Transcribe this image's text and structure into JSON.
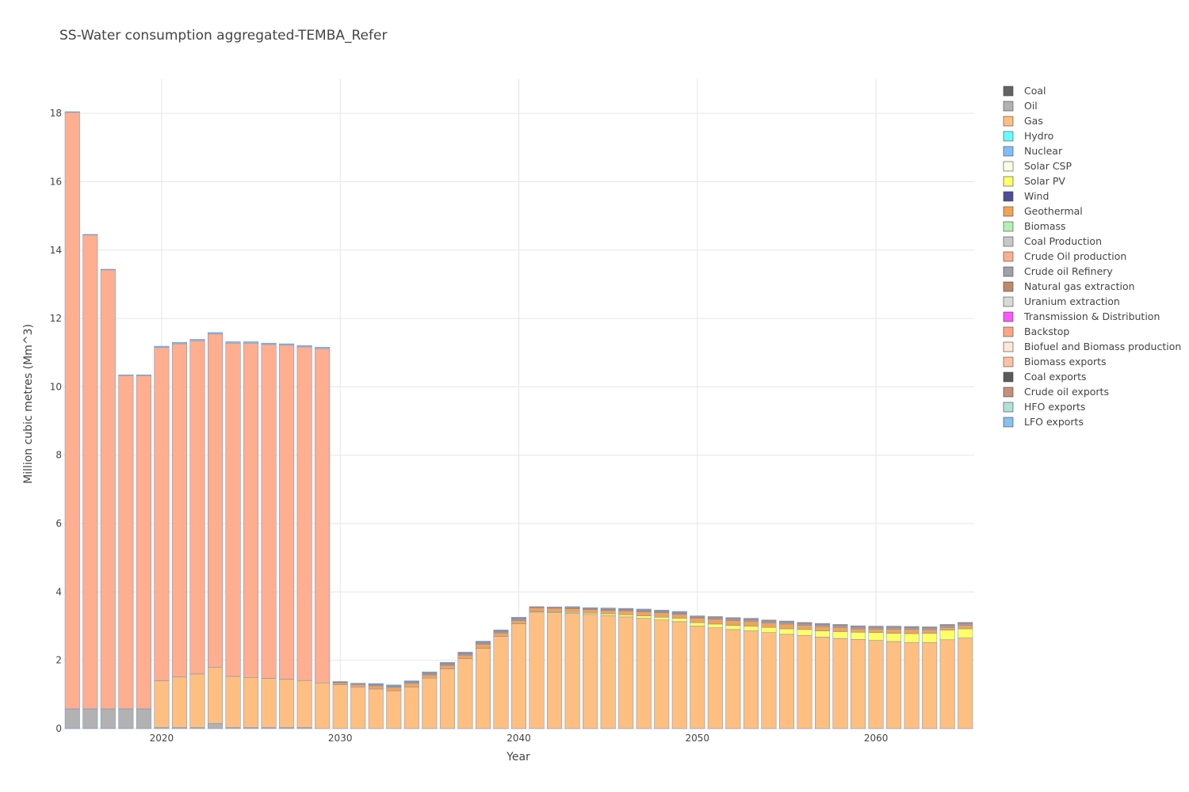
{
  "chart_data": {
    "type": "bar",
    "stacked": true,
    "title": "SS-Water consumption aggregated-TEMBA_Refer",
    "xlabel": "Year",
    "ylabel": "Million cubic metres (Mm^3)",
    "x": [
      2015,
      2016,
      2017,
      2018,
      2019,
      2020,
      2021,
      2022,
      2023,
      2024,
      2025,
      2026,
      2027,
      2028,
      2029,
      2030,
      2031,
      2032,
      2033,
      2034,
      2035,
      2036,
      2037,
      2038,
      2039,
      2040,
      2041,
      2042,
      2043,
      2044,
      2045,
      2046,
      2047,
      2048,
      2049,
      2050,
      2051,
      2052,
      2053,
      2054,
      2055,
      2056,
      2057,
      2058,
      2059,
      2060,
      2061,
      2062,
      2063,
      2064,
      2065
    ],
    "xlim": [
      2014.5,
      2065.5
    ],
    "ylim": [
      0,
      19
    ],
    "x_ticks": [
      2020,
      2030,
      2040,
      2050,
      2060
    ],
    "y_ticks": [
      0,
      2,
      4,
      6,
      8,
      10,
      12,
      14,
      16,
      18
    ],
    "grid": true,
    "legend_position": "right",
    "series": [
      {
        "name": "Coal",
        "color": "#636363",
        "values": [
          0,
          0,
          0,
          0,
          0,
          0,
          0,
          0,
          0,
          0,
          0,
          0,
          0,
          0,
          0,
          0,
          0,
          0,
          0,
          0,
          0,
          0,
          0,
          0,
          0,
          0,
          0,
          0,
          0,
          0,
          0,
          0,
          0,
          0,
          0,
          0,
          0,
          0,
          0,
          0,
          0,
          0,
          0,
          0,
          0,
          0,
          0,
          0,
          0,
          0,
          0
        ]
      },
      {
        "name": "Oil",
        "color": "#b2b2b2",
        "values": [
          0.58,
          0.58,
          0.58,
          0.58,
          0.58,
          0.03,
          0.03,
          0.03,
          0.15,
          0.03,
          0.03,
          0.03,
          0.03,
          0.03,
          0,
          0,
          0,
          0,
          0,
          0,
          0,
          0,
          0,
          0,
          0,
          0,
          0,
          0,
          0,
          0,
          0,
          0,
          0,
          0,
          0,
          0,
          0,
          0,
          0,
          0,
          0,
          0,
          0,
          0,
          0,
          0,
          0,
          0,
          0,
          0,
          0
        ]
      },
      {
        "name": "Gas",
        "color": "#ffbf80",
        "values": [
          0,
          0,
          0,
          0,
          0,
          1.37,
          1.48,
          1.57,
          1.65,
          1.5,
          1.47,
          1.44,
          1.42,
          1.38,
          1.34,
          1.28,
          1.22,
          1.16,
          1.11,
          1.22,
          1.48,
          1.75,
          2.05,
          2.35,
          2.7,
          3.07,
          3.41,
          3.4,
          3.37,
          3.34,
          3.31,
          3.27,
          3.23,
          3.18,
          3.13,
          3.0,
          2.95,
          2.9,
          2.86,
          2.81,
          2.76,
          2.73,
          2.68,
          2.64,
          2.61,
          2.58,
          2.55,
          2.52,
          2.52,
          2.6,
          2.65
        ]
      },
      {
        "name": "Hydro",
        "color": "#66ffff",
        "values": [
          0,
          0,
          0,
          0,
          0,
          0,
          0,
          0,
          0,
          0,
          0,
          0,
          0,
          0,
          0,
          0,
          0,
          0,
          0,
          0,
          0,
          0,
          0,
          0,
          0,
          0,
          0,
          0,
          0,
          0,
          0,
          0,
          0,
          0,
          0,
          0,
          0,
          0,
          0,
          0,
          0,
          0,
          0,
          0,
          0,
          0,
          0,
          0,
          0,
          0,
          0
        ]
      },
      {
        "name": "Nuclear",
        "color": "#80bfff",
        "values": [
          0,
          0,
          0,
          0,
          0,
          0,
          0,
          0,
          0,
          0,
          0,
          0,
          0,
          0,
          0,
          0,
          0,
          0,
          0,
          0,
          0,
          0,
          0,
          0,
          0,
          0,
          0,
          0,
          0,
          0,
          0,
          0,
          0,
          0,
          0,
          0,
          0,
          0,
          0,
          0,
          0,
          0,
          0,
          0,
          0,
          0,
          0,
          0,
          0,
          0,
          0
        ]
      },
      {
        "name": "Solar CSP",
        "color": "#ffffe5",
        "values": [
          0,
          0,
          0,
          0,
          0,
          0,
          0,
          0,
          0,
          0,
          0,
          0,
          0,
          0,
          0,
          0,
          0,
          0,
          0,
          0,
          0,
          0,
          0,
          0,
          0,
          0,
          0,
          0,
          0,
          0,
          0,
          0,
          0,
          0,
          0,
          0,
          0,
          0,
          0,
          0,
          0,
          0,
          0,
          0,
          0,
          0,
          0,
          0,
          0,
          0,
          0
        ]
      },
      {
        "name": "Solar PV",
        "color": "#ffff66",
        "values": [
          0,
          0,
          0,
          0,
          0,
          0,
          0,
          0,
          0,
          0,
          0,
          0,
          0,
          0,
          0,
          0,
          0,
          0,
          0,
          0,
          0,
          0,
          0,
          0,
          0,
          0,
          0.02,
          0.02,
          0.03,
          0.04,
          0.05,
          0.06,
          0.07,
          0.08,
          0.1,
          0.1,
          0.11,
          0.12,
          0.14,
          0.15,
          0.16,
          0.17,
          0.18,
          0.2,
          0.21,
          0.23,
          0.24,
          0.26,
          0.27,
          0.28,
          0.27
        ]
      },
      {
        "name": "Wind",
        "color": "#4d4d99",
        "values": [
          0,
          0,
          0,
          0,
          0,
          0,
          0,
          0,
          0,
          0,
          0,
          0,
          0,
          0,
          0,
          0,
          0,
          0,
          0,
          0,
          0,
          0,
          0,
          0,
          0,
          0,
          0,
          0,
          0,
          0,
          0,
          0,
          0,
          0,
          0,
          0,
          0,
          0,
          0,
          0,
          0,
          0,
          0,
          0,
          0,
          0,
          0,
          0,
          0,
          0,
          0
        ]
      },
      {
        "name": "Geothermal",
        "color": "#f5a255",
        "values": [
          0,
          0,
          0,
          0,
          0,
          0,
          0,
          0,
          0,
          0,
          0,
          0,
          0,
          0,
          0,
          0.06,
          0.07,
          0.09,
          0.1,
          0.11,
          0.09,
          0.1,
          0.1,
          0.12,
          0.1,
          0.09,
          0.1,
          0.1,
          0.11,
          0.1,
          0.1,
          0.12,
          0.12,
          0.13,
          0.11,
          0.13,
          0.14,
          0.14,
          0.14,
          0.13,
          0.14,
          0.12,
          0.13,
          0.12,
          0.1,
          0.1,
          0.12,
          0.12,
          0.1,
          0.08,
          0.1
        ]
      },
      {
        "name": "Biomass",
        "color": "#b3f0b3",
        "values": [
          0,
          0,
          0,
          0,
          0,
          0,
          0,
          0,
          0,
          0,
          0,
          0,
          0,
          0,
          0,
          0,
          0,
          0,
          0,
          0,
          0,
          0,
          0,
          0,
          0,
          0,
          0,
          0,
          0,
          0,
          0,
          0,
          0,
          0,
          0,
          0,
          0,
          0,
          0,
          0,
          0,
          0,
          0,
          0,
          0,
          0,
          0,
          0,
          0,
          0,
          0
        ]
      },
      {
        "name": "Coal Production",
        "color": "#c8c8c8",
        "values": [
          0,
          0,
          0,
          0,
          0,
          0,
          0,
          0,
          0,
          0,
          0,
          0,
          0,
          0,
          0,
          0,
          0,
          0,
          0,
          0,
          0,
          0,
          0,
          0,
          0,
          0,
          0,
          0,
          0,
          0,
          0,
          0,
          0,
          0,
          0,
          0,
          0,
          0,
          0,
          0,
          0,
          0,
          0,
          0,
          0,
          0,
          0,
          0,
          0,
          0,
          0
        ]
      },
      {
        "name": "Crude Oil production",
        "color": "#ffae8f",
        "values": [
          17.45,
          13.86,
          12.84,
          9.75,
          9.75,
          9.75,
          9.75,
          9.75,
          9.75,
          9.75,
          9.78,
          9.77,
          9.77,
          9.76,
          9.78,
          0,
          0,
          0,
          0,
          0,
          0,
          0,
          0,
          0,
          0,
          0,
          0,
          0,
          0,
          0,
          0,
          0,
          0,
          0,
          0,
          0,
          0,
          0,
          0,
          0,
          0,
          0,
          0,
          0,
          0,
          0,
          0,
          0,
          0,
          0,
          0
        ]
      },
      {
        "name": "Crude oil Refinery",
        "color": "#a0a0a8",
        "values": [
          0,
          0,
          0,
          0,
          0,
          0,
          0,
          0,
          0,
          0,
          0,
          0,
          0,
          0,
          0,
          0,
          0,
          0.03,
          0.03,
          0.03,
          0.03,
          0.03,
          0.03,
          0.03,
          0.03,
          0.04,
          0,
          0,
          0,
          0,
          0.01,
          0.01,
          0.02,
          0.02,
          0.03,
          0.03,
          0.04,
          0.05,
          0.05,
          0.05,
          0.05,
          0.05,
          0.05,
          0.05,
          0.05,
          0.05,
          0.05,
          0.05,
          0.05,
          0.05,
          0.05
        ]
      },
      {
        "name": "Natural gas extraction",
        "color": "#c0896a",
        "values": [
          0,
          0,
          0,
          0,
          0,
          0,
          0,
          0,
          0,
          0,
          0,
          0,
          0,
          0,
          0,
          0.02,
          0.02,
          0.02,
          0.02,
          0.02,
          0.04,
          0.04,
          0.04,
          0.04,
          0.04,
          0.04,
          0.04,
          0.04,
          0.04,
          0.04,
          0.04,
          0.04,
          0.04,
          0.04,
          0.04,
          0.04,
          0.04,
          0.04,
          0.04,
          0.04,
          0.04,
          0.04,
          0.04,
          0.04,
          0.04,
          0.04,
          0.04,
          0.04,
          0.04,
          0.04,
          0.04
        ]
      },
      {
        "name": "Uranium extraction",
        "color": "#d9d9d9",
        "values": [
          0,
          0,
          0,
          0,
          0,
          0,
          0,
          0,
          0,
          0,
          0,
          0,
          0,
          0,
          0,
          0,
          0,
          0,
          0,
          0,
          0,
          0,
          0,
          0,
          0,
          0,
          0,
          0,
          0,
          0,
          0,
          0,
          0,
          0,
          0,
          0,
          0,
          0,
          0,
          0,
          0,
          0,
          0,
          0,
          0,
          0,
          0,
          0,
          0,
          0,
          0
        ]
      },
      {
        "name": "Transmission & Distribution",
        "color": "#ff55ff",
        "values": [
          0,
          0,
          0,
          0,
          0,
          0,
          0,
          0,
          0,
          0,
          0,
          0,
          0,
          0,
          0,
          0,
          0,
          0,
          0,
          0,
          0,
          0,
          0,
          0,
          0,
          0,
          0,
          0,
          0,
          0,
          0,
          0,
          0,
          0,
          0,
          0,
          0,
          0,
          0,
          0,
          0,
          0,
          0,
          0,
          0,
          0,
          0,
          0,
          0,
          0,
          0
        ]
      },
      {
        "name": "Backstop",
        "color": "#ffa584",
        "values": [
          0,
          0,
          0,
          0,
          0,
          0,
          0,
          0,
          0,
          0,
          0,
          0,
          0,
          0,
          0,
          0,
          0,
          0,
          0,
          0,
          0,
          0,
          0,
          0,
          0,
          0,
          0,
          0,
          0,
          0,
          0,
          0,
          0,
          0,
          0,
          0,
          0,
          0,
          0,
          0,
          0,
          0,
          0,
          0,
          0,
          0,
          0,
          0,
          0,
          0,
          0
        ]
      },
      {
        "name": "Biofuel and Biomass production",
        "color": "#ffe8d4",
        "values": [
          0,
          0,
          0,
          0,
          0,
          0,
          0,
          0,
          0,
          0,
          0,
          0,
          0,
          0,
          0,
          0,
          0,
          0,
          0,
          0,
          0,
          0,
          0,
          0,
          0,
          0,
          0,
          0,
          0,
          0,
          0,
          0,
          0,
          0,
          0,
          0,
          0,
          0,
          0,
          0,
          0,
          0,
          0,
          0,
          0,
          0,
          0,
          0,
          0,
          0,
          0
        ]
      },
      {
        "name": "Biomass exports",
        "color": "#ffc2a0",
        "values": [
          0,
          0,
          0,
          0,
          0,
          0,
          0,
          0,
          0,
          0,
          0,
          0,
          0,
          0,
          0,
          0,
          0,
          0,
          0,
          0,
          0,
          0,
          0,
          0,
          0,
          0,
          0,
          0,
          0,
          0,
          0,
          0,
          0,
          0,
          0,
          0,
          0,
          0,
          0,
          0,
          0,
          0,
          0,
          0,
          0,
          0,
          0,
          0,
          0,
          0,
          0
        ]
      },
      {
        "name": "Coal exports",
        "color": "#5a5a5a",
        "values": [
          0,
          0,
          0,
          0,
          0,
          0,
          0,
          0,
          0,
          0,
          0,
          0,
          0,
          0,
          0,
          0,
          0,
          0,
          0,
          0,
          0,
          0,
          0,
          0,
          0,
          0,
          0,
          0,
          0,
          0,
          0,
          0,
          0,
          0,
          0,
          0,
          0,
          0,
          0,
          0,
          0,
          0,
          0,
          0,
          0,
          0,
          0,
          0,
          0,
          0,
          0
        ]
      },
      {
        "name": "Crude oil exports",
        "color": "#c49078",
        "values": [
          0,
          0,
          0,
          0,
          0,
          0,
          0,
          0,
          0,
          0,
          0,
          0,
          0,
          0,
          0,
          0,
          0,
          0,
          0,
          0,
          0,
          0,
          0,
          0,
          0,
          0,
          0,
          0,
          0,
          0,
          0,
          0,
          0,
          0,
          0,
          0,
          0,
          0,
          0,
          0,
          0,
          0,
          0,
          0,
          0,
          0,
          0,
          0,
          0,
          0,
          0
        ]
      },
      {
        "name": "HFO exports",
        "color": "#b0e0d6",
        "values": [
          0,
          0,
          0,
          0,
          0,
          0,
          0,
          0,
          0,
          0,
          0,
          0,
          0,
          0,
          0,
          0,
          0,
          0,
          0,
          0,
          0,
          0,
          0,
          0,
          0,
          0,
          0,
          0,
          0,
          0,
          0,
          0,
          0,
          0,
          0,
          0,
          0,
          0,
          0,
          0,
          0,
          0,
          0,
          0,
          0,
          0,
          0,
          0,
          0,
          0,
          0
        ]
      },
      {
        "name": "LFO exports",
        "color": "#88c0f0",
        "values": [
          0.02,
          0.02,
          0.02,
          0.02,
          0.02,
          0.04,
          0.04,
          0.04,
          0.04,
          0.04,
          0.04,
          0.04,
          0.04,
          0.04,
          0.04,
          0.02,
          0.02,
          0.02,
          0.02,
          0.02,
          0.02,
          0.02,
          0.02,
          0.02,
          0.02,
          0.02,
          0,
          0,
          0.02,
          0.02,
          0.02,
          0.02,
          0.02,
          0.02,
          0.02,
          0,
          0,
          0,
          0,
          0,
          0,
          0,
          0,
          0,
          0,
          0,
          0,
          0,
          0,
          0,
          0
        ]
      }
    ]
  }
}
